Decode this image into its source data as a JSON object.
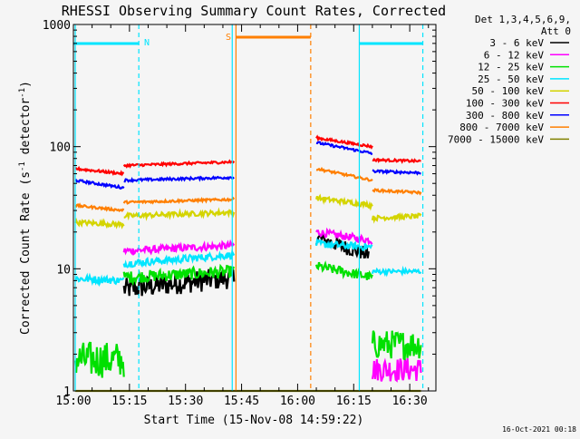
{
  "chart_data": {
    "type": "line",
    "title": "RHESSI Observing Summary Count Rates, Corrected",
    "xlabel": "Start Time (15-Nov-08 14:59:22)",
    "ylabel_main": "Corrected Count Rate (s",
    "ylabel_sup1": "-1",
    "ylabel_mid": " detector",
    "ylabel_sup2": "-1",
    "ylabel_end": ")",
    "xlim_minutes": [
      0,
      97
    ],
    "ylim": [
      1,
      1000
    ],
    "y_scale": "log",
    "x_ticks": [
      {
        "label": "15:00",
        "t": 0
      },
      {
        "label": "15:15",
        "t": 15
      },
      {
        "label": "15:30",
        "t": 30
      },
      {
        "label": "15:45",
        "t": 45
      },
      {
        "label": "16:00",
        "t": 60
      },
      {
        "label": "16:15",
        "t": 75
      },
      {
        "label": "16:30",
        "t": 90
      }
    ],
    "y_ticks": [
      {
        "label": "1",
        "v": 1
      },
      {
        "label": "10",
        "v": 10
      },
      {
        "label": "100",
        "v": 100
      },
      {
        "label": "1000",
        "v": 1000
      }
    ],
    "legend_header": [
      "Det 1,3,4,5,6,9,",
      "Att 0"
    ],
    "legend_position": "right",
    "timestamp": "16-Oct-2021 00:18",
    "event_flags": [
      {
        "label": "N",
        "color": "#00e5ff",
        "t_start": 0,
        "t_end": 17.5
      },
      {
        "label": "N",
        "color": "#00e5ff",
        "t_start": 76.5,
        "t_end": 93.5
      },
      {
        "label": "S",
        "color": "#ff7f00",
        "t_start": 43.5,
        "t_end": 63.5
      }
    ],
    "vlines": [
      {
        "t": 0.5,
        "color": "#00e5ff",
        "style": "solid"
      },
      {
        "t": 17.5,
        "color": "#00e5ff",
        "style": "dashed"
      },
      {
        "t": 42.5,
        "color": "#00e5ff",
        "style": "solid"
      },
      {
        "t": 43.5,
        "color": "#ff7f00",
        "style": "solid"
      },
      {
        "t": 63.5,
        "color": "#ff7f00",
        "style": "dashed"
      },
      {
        "t": 76.5,
        "color": "#00e5ff",
        "style": "solid"
      },
      {
        "t": 93.5,
        "color": "#00e5ff",
        "style": "dashed"
      }
    ],
    "series": [
      {
        "name": "3 - 6 keV",
        "color": "#000000",
        "segments": [
          {
            "t0": 13.5,
            "t1": 43,
            "v0": 6.8,
            "v1": 8.5,
            "noise": 0.09
          },
          {
            "t0": 65,
            "t1": 79,
            "v0": 18,
            "v1": 13,
            "noise": 0.06
          }
        ]
      },
      {
        "name": "6 - 12 keV",
        "color": "#ff00ff",
        "segments": [
          {
            "t0": 13.5,
            "t1": 43,
            "v0": 14,
            "v1": 15.5,
            "noise": 0.03
          },
          {
            "t0": 65,
            "t1": 80,
            "v0": 20,
            "v1": 17,
            "noise": 0.03
          },
          {
            "t0": 80,
            "t1": 93,
            "v0": 1.5,
            "v1": 1.5,
            "noise": 0.1
          }
        ]
      },
      {
        "name": "12 - 25 keV",
        "color": "#00e000",
        "segments": [
          {
            "t0": 0.5,
            "t1": 13.5,
            "v0": 1.8,
            "v1": 1.8,
            "noise": 0.15
          },
          {
            "t0": 13.5,
            "t1": 43,
            "v0": 8.5,
            "v1": 9.5,
            "noise": 0.05
          },
          {
            "t0": 65,
            "t1": 80,
            "v0": 10.5,
            "v1": 8.5,
            "noise": 0.04
          },
          {
            "t0": 80,
            "t1": 93,
            "v0": 2.4,
            "v1": 2.4,
            "noise": 0.12
          }
        ]
      },
      {
        "name": "25 - 50 keV",
        "color": "#00e5ff",
        "segments": [
          {
            "t0": 0.5,
            "t1": 13.5,
            "v0": 8.3,
            "v1": 8.0,
            "noise": 0.03
          },
          {
            "t0": 13.5,
            "t1": 43,
            "v0": 11,
            "v1": 13,
            "noise": 0.03
          },
          {
            "t0": 65,
            "t1": 80,
            "v0": 16,
            "v1": 15,
            "noise": 0.03
          },
          {
            "t0": 80,
            "t1": 93,
            "v0": 9.5,
            "v1": 9.5,
            "noise": 0.02
          }
        ]
      },
      {
        "name": "50 - 100 keV",
        "color": "#d4d400",
        "segments": [
          {
            "t0": 0.5,
            "t1": 13.5,
            "v0": 24,
            "v1": 23,
            "noise": 0.02
          },
          {
            "t0": 13.5,
            "t1": 43,
            "v0": 27,
            "v1": 29,
            "noise": 0.02
          },
          {
            "t0": 65,
            "t1": 80,
            "v0": 38,
            "v1": 33,
            "noise": 0.02
          },
          {
            "t0": 80,
            "t1": 93,
            "v0": 26,
            "v1": 27,
            "noise": 0.02
          }
        ]
      },
      {
        "name": "100 - 300 keV",
        "color": "#ff0000",
        "segments": [
          {
            "t0": 0.5,
            "t1": 13.5,
            "v0": 66,
            "v1": 60,
            "noise": 0.01
          },
          {
            "t0": 13.5,
            "t1": 43,
            "v0": 70,
            "v1": 75,
            "noise": 0.01
          },
          {
            "t0": 65,
            "t1": 80,
            "v0": 118,
            "v1": 100,
            "noise": 0.01
          },
          {
            "t0": 80,
            "t1": 93,
            "v0": 78,
            "v1": 76,
            "noise": 0.01
          }
        ]
      },
      {
        "name": "300 - 800 keV",
        "color": "#0000ff",
        "segments": [
          {
            "t0": 0.5,
            "t1": 13.5,
            "v0": 53,
            "v1": 46,
            "noise": 0.01
          },
          {
            "t0": 13.5,
            "t1": 43,
            "v0": 53,
            "v1": 56,
            "noise": 0.01
          },
          {
            "t0": 65,
            "t1": 80,
            "v0": 108,
            "v1": 88,
            "noise": 0.01
          },
          {
            "t0": 80,
            "t1": 93,
            "v0": 63,
            "v1": 61,
            "noise": 0.01
          }
        ]
      },
      {
        "name": "800 - 7000 keV",
        "color": "#ff7f00",
        "segments": [
          {
            "t0": 0.5,
            "t1": 13.5,
            "v0": 33,
            "v1": 30,
            "noise": 0.01
          },
          {
            "t0": 13.5,
            "t1": 43,
            "v0": 35,
            "v1": 37,
            "noise": 0.01
          },
          {
            "t0": 65,
            "t1": 80,
            "v0": 66,
            "v1": 53,
            "noise": 0.01
          },
          {
            "t0": 80,
            "t1": 93,
            "v0": 44,
            "v1": 42,
            "noise": 0.01
          }
        ]
      },
      {
        "name": "7000 - 15000 keV",
        "color": "#808000",
        "segments": [
          {
            "t0": 0.5,
            "t1": 93,
            "v0": 1.0,
            "v1": 1.0,
            "noise": 0.0
          }
        ]
      }
    ]
  }
}
